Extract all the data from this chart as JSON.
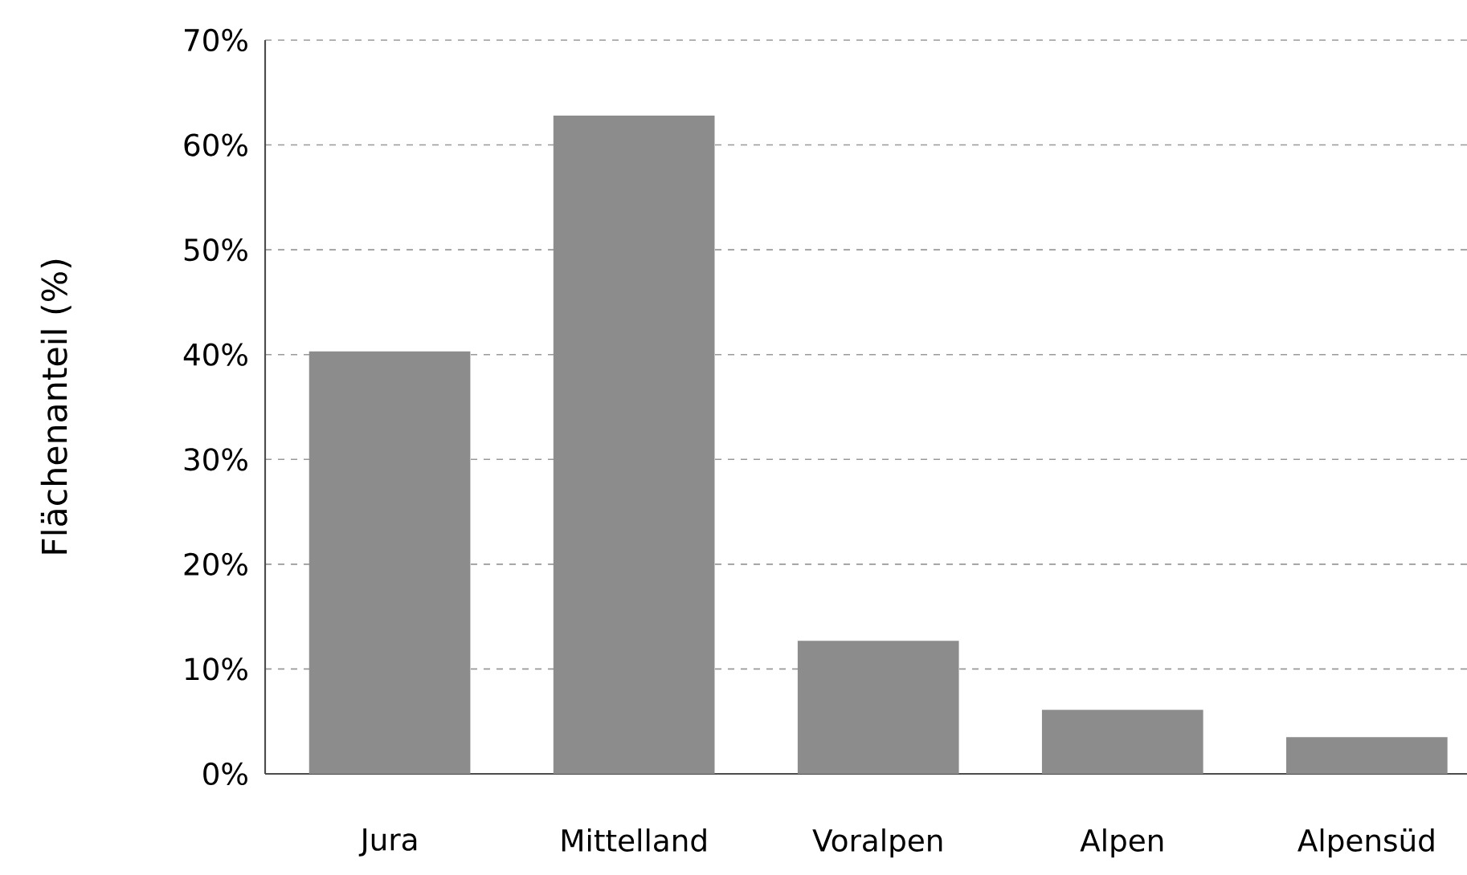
{
  "chart_data": {
    "type": "bar",
    "ylabel": "Flächenanteil (%)",
    "categories": [
      "Jura",
      "Mittelland",
      "Voralpen",
      "Alpen",
      "Alpensüd"
    ],
    "values": [
      40.3,
      62.8,
      12.7,
      6.1,
      3.5
    ],
    "color": "#8c8c8c",
    "ylim": [
      0,
      70
    ],
    "yticks": [
      {
        "value": 0,
        "label": "0%"
      },
      {
        "value": 10,
        "label": "10%"
      },
      {
        "value": 20,
        "label": "20%"
      },
      {
        "value": 30,
        "label": "30%"
      },
      {
        "value": 40,
        "label": "40%"
      },
      {
        "value": 50,
        "label": "50%"
      },
      {
        "value": 60,
        "label": "60%"
      },
      {
        "value": 70,
        "label": "70%"
      }
    ],
    "grid": "y"
  }
}
